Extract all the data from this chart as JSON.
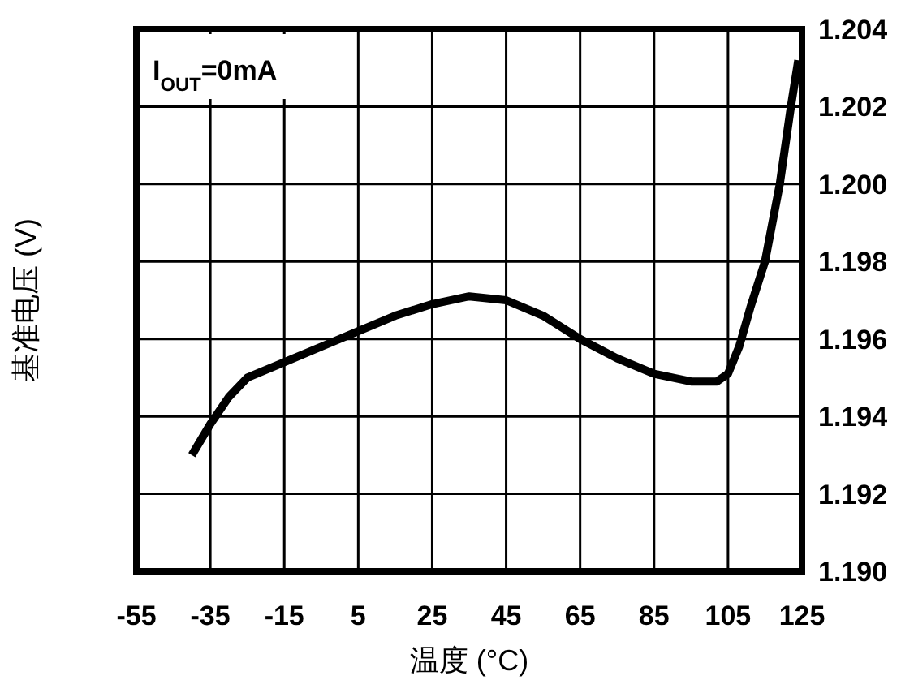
{
  "chart_data": {
    "type": "line",
    "xlabel": "温度 (°C)",
    "ylabel": "基准电压 (V)",
    "annotations": [
      "I$_{OUT}$=0mA"
    ],
    "x": [
      -40,
      -35,
      -30,
      -25,
      -15,
      -5,
      5,
      15,
      25,
      35,
      45,
      55,
      65,
      75,
      85,
      95,
      102,
      105,
      108,
      111,
      115,
      119,
      122,
      124
    ],
    "series": [
      {
        "color": "#000000",
        "values": [
          1.193,
          1.1938,
          1.1945,
          1.195,
          1.1954,
          1.1958,
          1.1962,
          1.1966,
          1.1969,
          1.1971,
          1.197,
          1.1966,
          1.196,
          1.1955,
          1.1951,
          1.1949,
          1.1949,
          1.1951,
          1.1958,
          1.1968,
          1.198,
          1.2,
          1.202,
          1.2032
        ]
      }
    ],
    "xlim": [
      -55,
      125
    ],
    "xticks": [
      -55,
      -35,
      -15,
      5,
      25,
      45,
      65,
      85,
      105,
      125
    ],
    "ylim": [
      1.19,
      1.204
    ],
    "yticks": [
      {
        "value": 1.19,
        "label": "1.190"
      },
      {
        "value": 1.192,
        "label": "1.192"
      },
      {
        "value": 1.194,
        "label": "1.194"
      },
      {
        "value": 1.196,
        "label": "1.196"
      },
      {
        "value": 1.198,
        "label": "1.198"
      },
      {
        "value": 1.2,
        "label": "1.200"
      },
      {
        "value": 1.202,
        "label": "1.202"
      },
      {
        "value": 1.204,
        "label": "1.204"
      }
    ],
    "grid": true
  }
}
